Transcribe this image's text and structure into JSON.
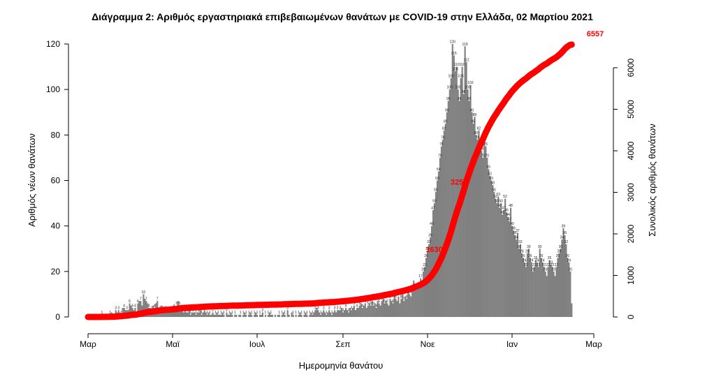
{
  "chart_data": {
    "type": "bar",
    "title": "Διάγραμμα 2: Αριθμός εργαστηριακά επιβεβαιωμένων θανάτων με COVID-19 στην Ελλάδα, 02 Μαρτίου 2021",
    "xlabel": "Ημερομηνία θανάτου",
    "ylabel": "Αριθμός νέων θανάτων",
    "y2label": "Συνολικός αριθμός θανάτων",
    "x_ticks": [
      "Μαρ",
      "Μαϊ",
      "Ιουλ",
      "Σεπ",
      "Νοε",
      "Ιαν",
      "Μαρ"
    ],
    "x_tick_dates": [
      "2020-03-01",
      "2020-05-01",
      "2020-07-01",
      "2020-09-01",
      "2020-11-01",
      "2021-01-01",
      "2021-03-01"
    ],
    "ylim": [
      0,
      120
    ],
    "y_ticks": [
      0,
      20,
      40,
      60,
      80,
      100,
      120
    ],
    "y2lim": [
      0,
      6557
    ],
    "y2_ticks": [
      0,
      1000,
      2000,
      3000,
      4000,
      5000,
      6000
    ],
    "x_start": "2020-03-01",
    "daily_deaths": [
      0,
      0,
      0,
      0,
      0,
      0,
      0,
      0,
      0,
      0,
      1,
      0,
      0,
      1,
      0,
      1,
      1,
      2,
      0,
      1,
      3,
      2,
      3,
      2,
      1,
      4,
      4,
      3,
      3,
      3,
      6,
      5,
      4,
      3,
      4,
      2,
      6,
      7,
      7,
      5,
      10,
      8,
      7,
      6,
      4,
      4,
      3,
      5,
      4,
      6,
      7,
      4,
      3,
      5,
      3,
      4,
      3,
      2,
      2,
      2,
      3,
      2,
      4,
      3,
      5,
      7,
      5,
      4,
      3,
      2,
      3,
      2,
      2,
      3,
      1,
      2,
      2,
      2,
      1,
      2,
      2,
      3,
      1,
      2,
      3,
      2,
      1,
      2,
      1,
      1,
      2,
      1,
      1,
      2,
      1,
      1,
      1,
      2,
      1,
      0,
      2,
      1,
      1,
      2,
      1,
      0,
      1,
      1,
      0,
      1,
      1,
      0,
      1,
      2,
      1,
      0,
      1,
      2,
      1,
      0,
      1,
      2,
      1,
      0,
      1,
      1,
      2,
      0,
      1,
      0,
      1,
      2,
      1,
      1,
      0,
      1,
      0,
      1,
      1,
      0,
      1,
      2,
      1,
      0,
      3,
      1,
      0,
      2,
      1,
      0,
      1,
      0,
      1,
      2,
      1,
      0,
      1,
      2,
      1,
      0,
      1,
      2,
      1,
      2,
      3,
      4,
      3,
      2,
      1,
      2,
      3,
      2,
      1,
      2,
      3,
      2,
      1,
      2,
      3,
      2,
      3,
      3,
      3,
      4,
      2,
      3,
      4,
      3,
      2,
      4,
      3,
      4,
      5,
      3,
      4,
      4,
      5,
      6,
      4,
      5,
      6,
      4,
      5,
      6,
      5,
      7,
      5,
      6,
      4,
      7,
      6,
      5,
      7,
      8,
      6,
      7,
      6,
      5,
      8,
      7,
      6,
      12,
      8,
      7,
      9,
      6,
      8,
      10,
      7,
      9,
      8,
      11,
      10,
      9,
      12,
      16,
      13,
      14,
      13,
      15,
      17,
      14,
      20,
      22,
      26,
      29,
      32,
      35,
      40,
      47,
      50,
      55,
      60,
      64,
      70,
      75,
      78,
      82,
      85,
      90,
      95,
      100,
      105,
      120,
      115,
      108,
      110,
      100,
      95,
      105,
      110,
      98,
      119,
      112,
      100,
      95,
      102,
      90,
      85,
      88,
      80,
      78,
      82,
      75,
      73,
      70,
      80,
      75,
      70,
      65,
      62,
      60,
      58,
      55,
      52,
      50,
      53,
      48,
      50,
      45,
      47,
      52,
      46,
      44,
      42,
      48,
      40,
      38,
      36,
      34,
      37,
      30,
      32,
      28,
      26,
      24,
      22,
      28,
      30,
      26,
      24,
      20,
      22,
      25,
      24,
      22,
      30,
      26,
      24,
      22,
      20,
      18,
      22,
      25,
      23,
      22,
      20,
      18,
      22,
      26,
      28,
      30,
      34,
      39,
      36,
      32,
      26,
      24,
      20,
      6
    ],
    "cumulative_total": 6557,
    "cum_annotations": [
      {
        "label": "1630",
        "value": 1630,
        "date": "2020-11-14"
      },
      {
        "label": "3250",
        "value": 3250,
        "date": "2020-12-02"
      },
      {
        "label": "6557",
        "value": 6557,
        "date": "2021-03-02"
      }
    ]
  }
}
